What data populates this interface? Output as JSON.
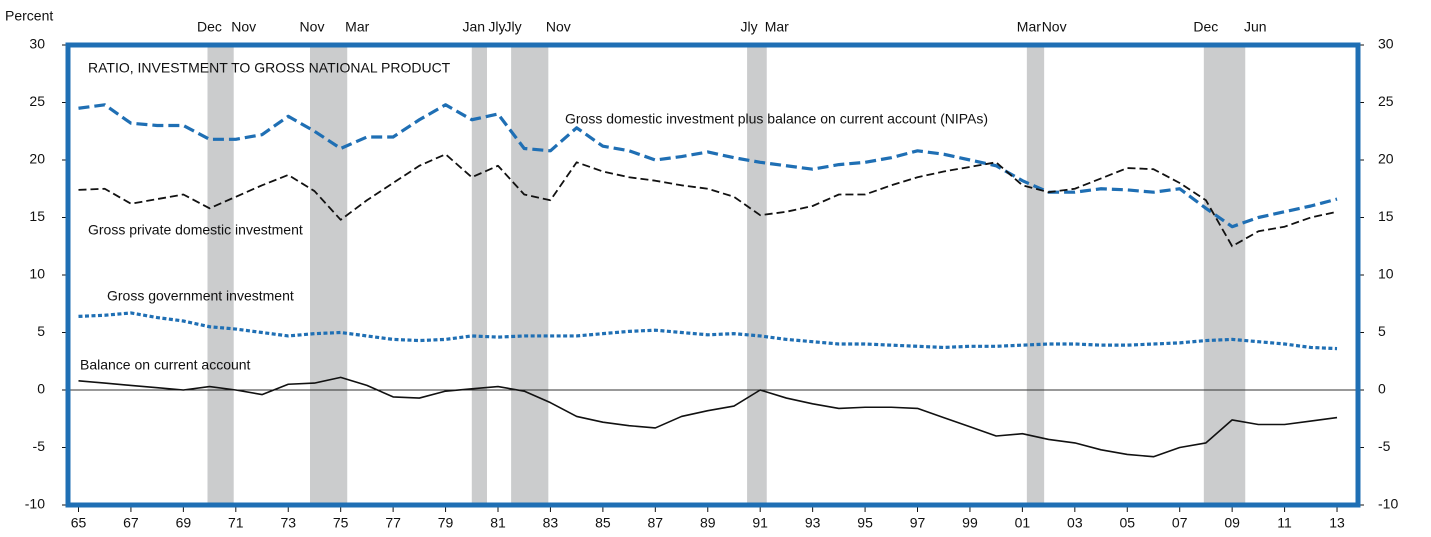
{
  "chart_data": {
    "type": "line",
    "y_axis_label": "Percent",
    "annotation": "RATIO, INVESTMENT TO GROSS NATIONAL PRODUCT",
    "x": [
      1965,
      1966,
      1967,
      1968,
      1969,
      1970,
      1971,
      1972,
      1973,
      1974,
      1975,
      1976,
      1977,
      1978,
      1979,
      1980,
      1981,
      1982,
      1983,
      1984,
      1985,
      1986,
      1987,
      1988,
      1989,
      1990,
      1991,
      1992,
      1993,
      1994,
      1995,
      1996,
      1997,
      1998,
      1999,
      2000,
      2001,
      2002,
      2003,
      2004,
      2005,
      2006,
      2007,
      2008,
      2009,
      2010,
      2011,
      2012,
      2013
    ],
    "series": [
      {
        "name": "Gross domestic investment plus balance on current account (NIPAs)",
        "color": "#1f6fb4",
        "style": "dashed",
        "values": [
          24.5,
          24.8,
          23.2,
          23.0,
          23.0,
          21.8,
          21.8,
          22.2,
          23.8,
          22.5,
          21.0,
          22.0,
          22.0,
          23.5,
          24.8,
          23.5,
          24.0,
          21.0,
          20.8,
          22.8,
          21.2,
          20.8,
          20.0,
          20.3,
          20.7,
          20.2,
          19.8,
          19.5,
          19.2,
          19.6,
          19.8,
          20.2,
          20.8,
          20.5,
          20.0,
          19.5,
          18.2,
          17.2,
          17.2,
          17.5,
          17.4,
          17.2,
          17.5,
          15.8,
          14.2,
          15.0,
          15.5,
          16.0,
          16.6
        ]
      },
      {
        "name": "Gross private domestic investment",
        "color": "#111111",
        "style": "dashed-thin",
        "values": [
          17.4,
          17.5,
          16.2,
          16.6,
          17.0,
          15.8,
          16.8,
          17.8,
          18.7,
          17.3,
          14.8,
          16.5,
          18.0,
          19.5,
          20.5,
          18.5,
          19.5,
          17.0,
          16.5,
          19.8,
          19.0,
          18.5,
          18.2,
          17.8,
          17.5,
          16.8,
          15.2,
          15.5,
          16.0,
          17.0,
          17.0,
          17.8,
          18.5,
          19.0,
          19.4,
          19.8,
          17.8,
          17.2,
          17.5,
          18.4,
          19.3,
          19.2,
          18.0,
          16.5,
          12.5,
          13.8,
          14.2,
          15.0,
          15.5
        ]
      },
      {
        "name": "Gross government investment",
        "color": "#1f6fb4",
        "style": "dotted",
        "values": [
          6.4,
          6.5,
          6.7,
          6.3,
          6.0,
          5.5,
          5.3,
          5.0,
          4.7,
          4.9,
          5.0,
          4.7,
          4.4,
          4.3,
          4.4,
          4.7,
          4.6,
          4.7,
          4.7,
          4.7,
          4.9,
          5.1,
          5.2,
          5.0,
          4.8,
          4.9,
          4.7,
          4.4,
          4.2,
          4.0,
          4.0,
          3.9,
          3.8,
          3.7,
          3.8,
          3.8,
          3.9,
          4.0,
          4.0,
          3.9,
          3.9,
          4.0,
          4.1,
          4.3,
          4.4,
          4.2,
          4.0,
          3.7,
          3.6
        ]
      },
      {
        "name": "Balance on current account",
        "color": "#111111",
        "style": "solid",
        "values": [
          0.8,
          0.6,
          0.4,
          0.2,
          0.0,
          0.3,
          0.0,
          -0.4,
          0.5,
          0.6,
          1.1,
          0.4,
          -0.6,
          -0.7,
          -0.1,
          0.1,
          0.3,
          -0.1,
          -1.1,
          -2.3,
          -2.8,
          -3.1,
          -3.3,
          -2.3,
          -1.8,
          -1.4,
          0.0,
          -0.7,
          -1.2,
          -1.6,
          -1.5,
          -1.5,
          -1.6,
          -2.4,
          -3.2,
          -4.0,
          -3.8,
          -4.3,
          -4.6,
          -5.2,
          -5.6,
          -5.8,
          -5.0,
          -4.6,
          -2.6,
          -3.0,
          -3.0,
          -2.7,
          -2.4
        ]
      }
    ],
    "recessions": [
      {
        "start": 1969.92,
        "end": 1970.92,
        "start_label": "Dec",
        "end_label": "Nov"
      },
      {
        "start": 1973.83,
        "end": 1975.25,
        "start_label": "Nov",
        "end_label": "Mar"
      },
      {
        "start": 1980.0,
        "end": 1980.58,
        "start_label": "Jan",
        "end_label": "Jly"
      },
      {
        "start": 1981.5,
        "end": 1982.92,
        "start_label": "Jly",
        "end_label": "Nov"
      },
      {
        "start": 1990.5,
        "end": 1991.25,
        "start_label": "Jly",
        "end_label": "Mar"
      },
      {
        "start": 2001.17,
        "end": 2001.83,
        "start_label": "Mar",
        "end_label": "Nov"
      },
      {
        "start": 2007.92,
        "end": 2009.5,
        "start_label": "Dec",
        "end_label": "Jun"
      }
    ],
    "xlim": [
      1964.6,
      2013.8
    ],
    "xticks": [
      {
        "value": 1965,
        "label": "65"
      },
      {
        "value": 1967,
        "label": "67"
      },
      {
        "value": 1969,
        "label": "69"
      },
      {
        "value": 1971,
        "label": "71"
      },
      {
        "value": 1973,
        "label": "73"
      },
      {
        "value": 1975,
        "label": "75"
      },
      {
        "value": 1977,
        "label": "77"
      },
      {
        "value": 1979,
        "label": "79"
      },
      {
        "value": 1981,
        "label": "81"
      },
      {
        "value": 1983,
        "label": "83"
      },
      {
        "value": 1985,
        "label": "85"
      },
      {
        "value": 1987,
        "label": "87"
      },
      {
        "value": 1989,
        "label": "89"
      },
      {
        "value": 1991,
        "label": "91"
      },
      {
        "value": 1993,
        "label": "93"
      },
      {
        "value": 1995,
        "label": "95"
      },
      {
        "value": 1997,
        "label": "97"
      },
      {
        "value": 1999,
        "label": "99"
      },
      {
        "value": 2001,
        "label": "01"
      },
      {
        "value": 2003,
        "label": "03"
      },
      {
        "value": 2005,
        "label": "05"
      },
      {
        "value": 2007,
        "label": "07"
      },
      {
        "value": 2009,
        "label": "09"
      },
      {
        "value": 2011,
        "label": "11"
      },
      {
        "value": 2013,
        "label": "13"
      }
    ],
    "ylim": [
      -10,
      30
    ],
    "yticks": [
      -10,
      -5,
      0,
      5,
      10,
      15,
      20,
      25,
      30
    ],
    "y2lim": [
      -10,
      30
    ],
    "y2ticks": [
      -10,
      -5,
      0,
      5,
      10,
      15,
      20,
      25,
      30
    ]
  }
}
